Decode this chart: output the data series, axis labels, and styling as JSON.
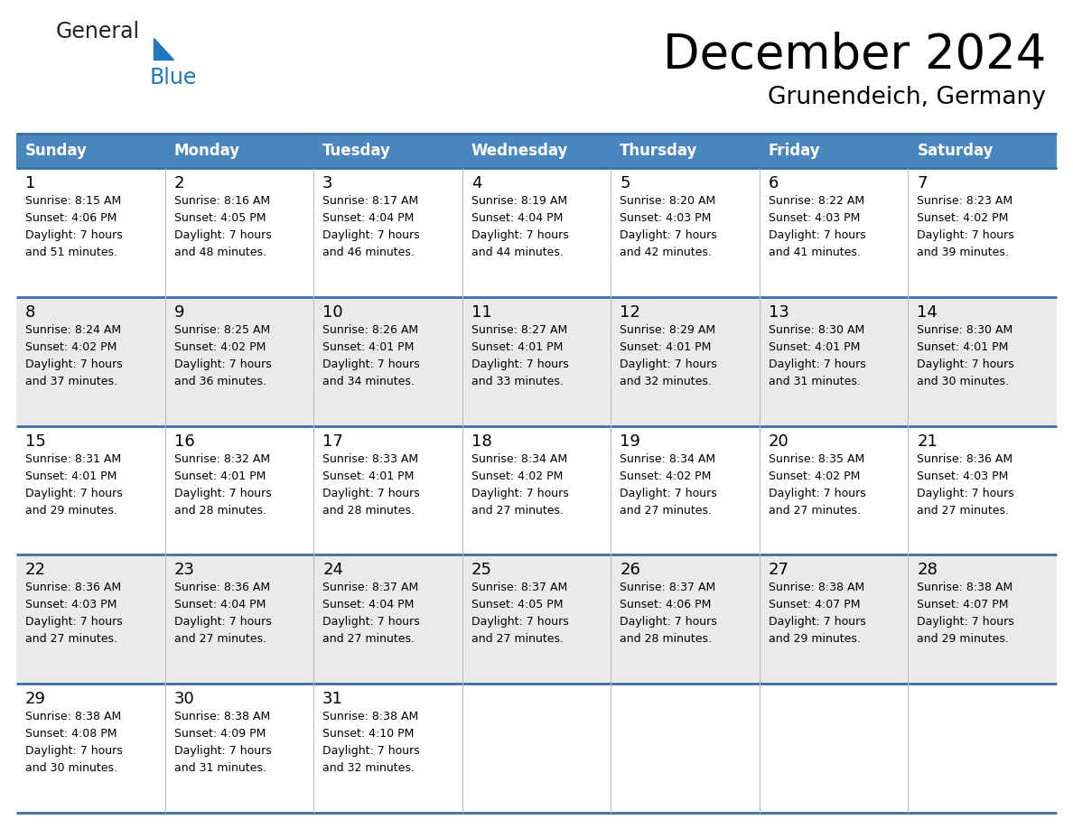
{
  "title": "December 2024",
  "subtitle": "Grunendeich, Germany",
  "header_color": "#4a86be",
  "header_text_color": "#FFFFFF",
  "days_of_week": [
    "Sunday",
    "Monday",
    "Tuesday",
    "Wednesday",
    "Thursday",
    "Friday",
    "Saturday"
  ],
  "cell_data": [
    [
      {
        "day": "1",
        "info": "Sunrise: 8:15 AM\nSunset: 4:06 PM\nDaylight: 7 hours\nand 51 minutes."
      },
      {
        "day": "2",
        "info": "Sunrise: 8:16 AM\nSunset: 4:05 PM\nDaylight: 7 hours\nand 48 minutes."
      },
      {
        "day": "3",
        "info": "Sunrise: 8:17 AM\nSunset: 4:04 PM\nDaylight: 7 hours\nand 46 minutes."
      },
      {
        "day": "4",
        "info": "Sunrise: 8:19 AM\nSunset: 4:04 PM\nDaylight: 7 hours\nand 44 minutes."
      },
      {
        "day": "5",
        "info": "Sunrise: 8:20 AM\nSunset: 4:03 PM\nDaylight: 7 hours\nand 42 minutes."
      },
      {
        "day": "6",
        "info": "Sunrise: 8:22 AM\nSunset: 4:03 PM\nDaylight: 7 hours\nand 41 minutes."
      },
      {
        "day": "7",
        "info": "Sunrise: 8:23 AM\nSunset: 4:02 PM\nDaylight: 7 hours\nand 39 minutes."
      }
    ],
    [
      {
        "day": "8",
        "info": "Sunrise: 8:24 AM\nSunset: 4:02 PM\nDaylight: 7 hours\nand 37 minutes."
      },
      {
        "day": "9",
        "info": "Sunrise: 8:25 AM\nSunset: 4:02 PM\nDaylight: 7 hours\nand 36 minutes."
      },
      {
        "day": "10",
        "info": "Sunrise: 8:26 AM\nSunset: 4:01 PM\nDaylight: 7 hours\nand 34 minutes."
      },
      {
        "day": "11",
        "info": "Sunrise: 8:27 AM\nSunset: 4:01 PM\nDaylight: 7 hours\nand 33 minutes."
      },
      {
        "day": "12",
        "info": "Sunrise: 8:29 AM\nSunset: 4:01 PM\nDaylight: 7 hours\nand 32 minutes."
      },
      {
        "day": "13",
        "info": "Sunrise: 8:30 AM\nSunset: 4:01 PM\nDaylight: 7 hours\nand 31 minutes."
      },
      {
        "day": "14",
        "info": "Sunrise: 8:30 AM\nSunset: 4:01 PM\nDaylight: 7 hours\nand 30 minutes."
      }
    ],
    [
      {
        "day": "15",
        "info": "Sunrise: 8:31 AM\nSunset: 4:01 PM\nDaylight: 7 hours\nand 29 minutes."
      },
      {
        "day": "16",
        "info": "Sunrise: 8:32 AM\nSunset: 4:01 PM\nDaylight: 7 hours\nand 28 minutes."
      },
      {
        "day": "17",
        "info": "Sunrise: 8:33 AM\nSunset: 4:01 PM\nDaylight: 7 hours\nand 28 minutes."
      },
      {
        "day": "18",
        "info": "Sunrise: 8:34 AM\nSunset: 4:02 PM\nDaylight: 7 hours\nand 27 minutes."
      },
      {
        "day": "19",
        "info": "Sunrise: 8:34 AM\nSunset: 4:02 PM\nDaylight: 7 hours\nand 27 minutes."
      },
      {
        "day": "20",
        "info": "Sunrise: 8:35 AM\nSunset: 4:02 PM\nDaylight: 7 hours\nand 27 minutes."
      },
      {
        "day": "21",
        "info": "Sunrise: 8:36 AM\nSunset: 4:03 PM\nDaylight: 7 hours\nand 27 minutes."
      }
    ],
    [
      {
        "day": "22",
        "info": "Sunrise: 8:36 AM\nSunset: 4:03 PM\nDaylight: 7 hours\nand 27 minutes."
      },
      {
        "day": "23",
        "info": "Sunrise: 8:36 AM\nSunset: 4:04 PM\nDaylight: 7 hours\nand 27 minutes."
      },
      {
        "day": "24",
        "info": "Sunrise: 8:37 AM\nSunset: 4:04 PM\nDaylight: 7 hours\nand 27 minutes."
      },
      {
        "day": "25",
        "info": "Sunrise: 8:37 AM\nSunset: 4:05 PM\nDaylight: 7 hours\nand 27 minutes."
      },
      {
        "day": "26",
        "info": "Sunrise: 8:37 AM\nSunset: 4:06 PM\nDaylight: 7 hours\nand 28 minutes."
      },
      {
        "day": "27",
        "info": "Sunrise: 8:38 AM\nSunset: 4:07 PM\nDaylight: 7 hours\nand 29 minutes."
      },
      {
        "day": "28",
        "info": "Sunrise: 8:38 AM\nSunset: 4:07 PM\nDaylight: 7 hours\nand 29 minutes."
      }
    ],
    [
      {
        "day": "29",
        "info": "Sunrise: 8:38 AM\nSunset: 4:08 PM\nDaylight: 7 hours\nand 30 minutes."
      },
      {
        "day": "30",
        "info": "Sunrise: 8:38 AM\nSunset: 4:09 PM\nDaylight: 7 hours\nand 31 minutes."
      },
      {
        "day": "31",
        "info": "Sunrise: 8:38 AM\nSunset: 4:10 PM\nDaylight: 7 hours\nand 32 minutes."
      },
      null,
      null,
      null,
      null
    ]
  ],
  "background_color": "#FFFFFF",
  "cell_bg_white": "#FFFFFF",
  "cell_bg_gray": "#EAEAEA",
  "border_color": "#3a6ea5",
  "text_color": "#000000",
  "logo_general_color": "#222222",
  "logo_blue_color": "#2178BC",
  "fig_width": 11.88,
  "fig_height": 9.18,
  "dpi": 100
}
